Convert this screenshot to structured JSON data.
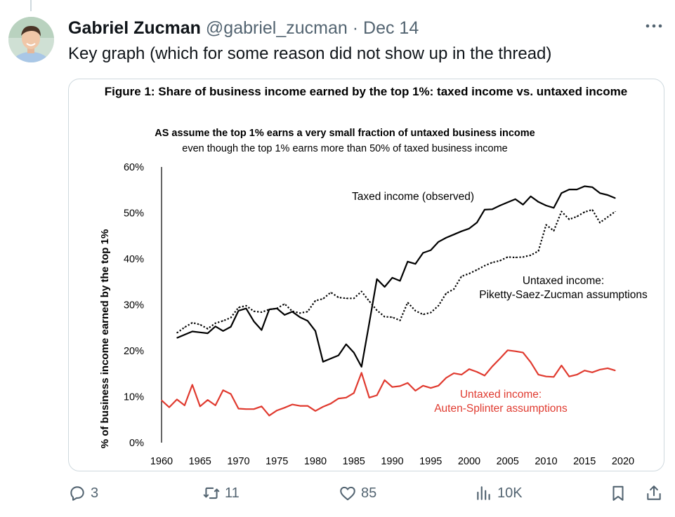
{
  "author": {
    "name": "Gabriel Zucman",
    "handle": "@gabriel_zucman",
    "separator": "·",
    "date": "Dec 14"
  },
  "tweet": {
    "text": "Key graph (which for some reason did not show up in the thread)"
  },
  "actions": {
    "replies": "3",
    "retweets": "11",
    "likes": "85",
    "views": "10K"
  },
  "icons": {
    "more": "more-icon",
    "reply": "reply-icon",
    "retweet": "retweet-icon",
    "like": "heart-icon",
    "views": "views-icon",
    "bookmark": "bookmark-icon",
    "share": "share-icon"
  },
  "chart_data": {
    "type": "line",
    "title": "Figure 1: Share of business income earned by the top 1%: taxed income vs. untaxed income",
    "subtitle_line1": "AS assume the top 1% earns a very small fraction of untaxed business income",
    "subtitle_line2": "even though the top 1% earns more than 50% of taxed business income",
    "ylabel": "% of business income earned by the top 1%",
    "xlabel": "",
    "xlim": [
      1960,
      2020
    ],
    "ylim": [
      0,
      60
    ],
    "x_ticks": [
      "1960",
      "1965",
      "1970",
      "1975",
      "1980",
      "1985",
      "1990",
      "1995",
      "2000",
      "2005",
      "2010",
      "2015",
      "2020"
    ],
    "y_ticks": [
      "0%",
      "10%",
      "20%",
      "30%",
      "40%",
      "50%",
      "60%"
    ],
    "grid": false,
    "legend": "inline labels",
    "series": [
      {
        "name": "Taxed income (observed)",
        "label_lines": [
          "Taxed income (observed)"
        ],
        "color": "#000000",
        "style": "solid",
        "x": [
          1962,
          1963,
          1964,
          1965,
          1966,
          1967,
          1968,
          1969,
          1970,
          1971,
          1972,
          1973,
          1974,
          1975,
          1976,
          1977,
          1978,
          1979,
          1980,
          1981,
          1982,
          1983,
          1984,
          1985,
          1986,
          1987,
          1988,
          1989,
          1990,
          1991,
          1992,
          1993,
          1994,
          1995,
          1996,
          1997,
          1998,
          1999,
          2000,
          2001,
          2002,
          2003,
          2004,
          2005,
          2006,
          2007,
          2008,
          2009,
          2010,
          2011,
          2012,
          2013,
          2014,
          2015,
          2016,
          2017,
          2018,
          2019
        ],
        "values": [
          22.8,
          23.5,
          24.2,
          24.0,
          23.8,
          25.3,
          24.3,
          25.2,
          28.7,
          29.2,
          26.4,
          24.5,
          29.0,
          29.2,
          27.8,
          28.5,
          27.3,
          26.5,
          24.3,
          17.6,
          18.3,
          19.0,
          21.4,
          19.6,
          16.5,
          26.0,
          35.6,
          33.9,
          35.9,
          35.2,
          39.4,
          38.9,
          41.3,
          41.9,
          43.7,
          44.6,
          45.3,
          46.0,
          46.6,
          47.9,
          50.7,
          50.8,
          51.6,
          52.3,
          53.0,
          51.8,
          53.6,
          52.4,
          51.6,
          51.1,
          54.3,
          55.1,
          55.1,
          55.8,
          55.6,
          54.3,
          53.9,
          53.2
        ]
      },
      {
        "name": "Untaxed income: Piketty-Saez-Zucman assumptions",
        "label_lines": [
          "Untaxed income:",
          "Piketty-Saez-Zucman assumptions"
        ],
        "color": "#000000",
        "style": "dotted",
        "x": [
          1962,
          1963,
          1964,
          1965,
          1966,
          1967,
          1968,
          1969,
          1970,
          1971,
          1972,
          1973,
          1974,
          1975,
          1976,
          1977,
          1978,
          1979,
          1980,
          1981,
          1982,
          1983,
          1984,
          1985,
          1986,
          1987,
          1988,
          1989,
          1990,
          1991,
          1992,
          1993,
          1994,
          1995,
          1996,
          1997,
          1998,
          1999,
          2000,
          2001,
          2002,
          2003,
          2004,
          2005,
          2006,
          2007,
          2008,
          2009,
          2010,
          2011,
          2012,
          2013,
          2014,
          2015,
          2016,
          2017,
          2018,
          2019
        ],
        "values": [
          23.9,
          25.1,
          26.1,
          25.7,
          24.8,
          26.0,
          26.5,
          27.2,
          29.4,
          29.8,
          28.6,
          28.4,
          29.0,
          29.2,
          30.2,
          28.6,
          28.2,
          28.5,
          30.9,
          31.3,
          32.7,
          31.6,
          31.4,
          31.4,
          32.9,
          30.8,
          28.8,
          27.4,
          27.3,
          26.6,
          30.5,
          28.7,
          27.9,
          28.3,
          29.8,
          32.5,
          33.4,
          36.2,
          36.8,
          37.6,
          38.5,
          39.2,
          39.6,
          40.4,
          40.3,
          40.4,
          40.8,
          41.7,
          47.4,
          46.1,
          50.3,
          48.6,
          49.2,
          50.2,
          50.7,
          47.9,
          49.1,
          50.3
        ]
      },
      {
        "name": "Untaxed income: Auten-Splinter assumptions",
        "label_lines": [
          "Untaxed income:",
          "Auten-Splinter assumptions"
        ],
        "color": "#e03a2f",
        "style": "solid",
        "x": [
          1960,
          1961,
          1962,
          1963,
          1964,
          1965,
          1966,
          1967,
          1968,
          1969,
          1970,
          1971,
          1972,
          1973,
          1974,
          1975,
          1976,
          1977,
          1978,
          1979,
          1980,
          1981,
          1982,
          1983,
          1984,
          1985,
          1986,
          1987,
          1988,
          1989,
          1990,
          1991,
          1992,
          1993,
          1994,
          1995,
          1996,
          1997,
          1998,
          1999,
          2000,
          2001,
          2002,
          2003,
          2004,
          2005,
          2006,
          2007,
          2008,
          2009,
          2010,
          2011,
          2012,
          2013,
          2014,
          2015,
          2016,
          2017,
          2018,
          2019
        ],
        "values": [
          9.2,
          7.7,
          9.4,
          8.1,
          12.6,
          7.9,
          9.3,
          8.1,
          11.4,
          10.6,
          7.4,
          7.3,
          7.3,
          7.9,
          5.9,
          7.0,
          7.6,
          8.3,
          8.0,
          8.0,
          6.9,
          7.8,
          8.5,
          9.6,
          9.8,
          10.8,
          15.2,
          9.8,
          10.3,
          13.6,
          12.1,
          12.3,
          13.0,
          11.3,
          12.4,
          11.9,
          12.4,
          14.1,
          15.1,
          14.8,
          16.0,
          15.4,
          14.6,
          16.6,
          18.3,
          20.1,
          19.9,
          19.6,
          17.5,
          14.8,
          14.4,
          14.3,
          16.8,
          14.4,
          14.8,
          15.7,
          15.3,
          15.9,
          16.2,
          15.7
        ]
      }
    ]
  }
}
